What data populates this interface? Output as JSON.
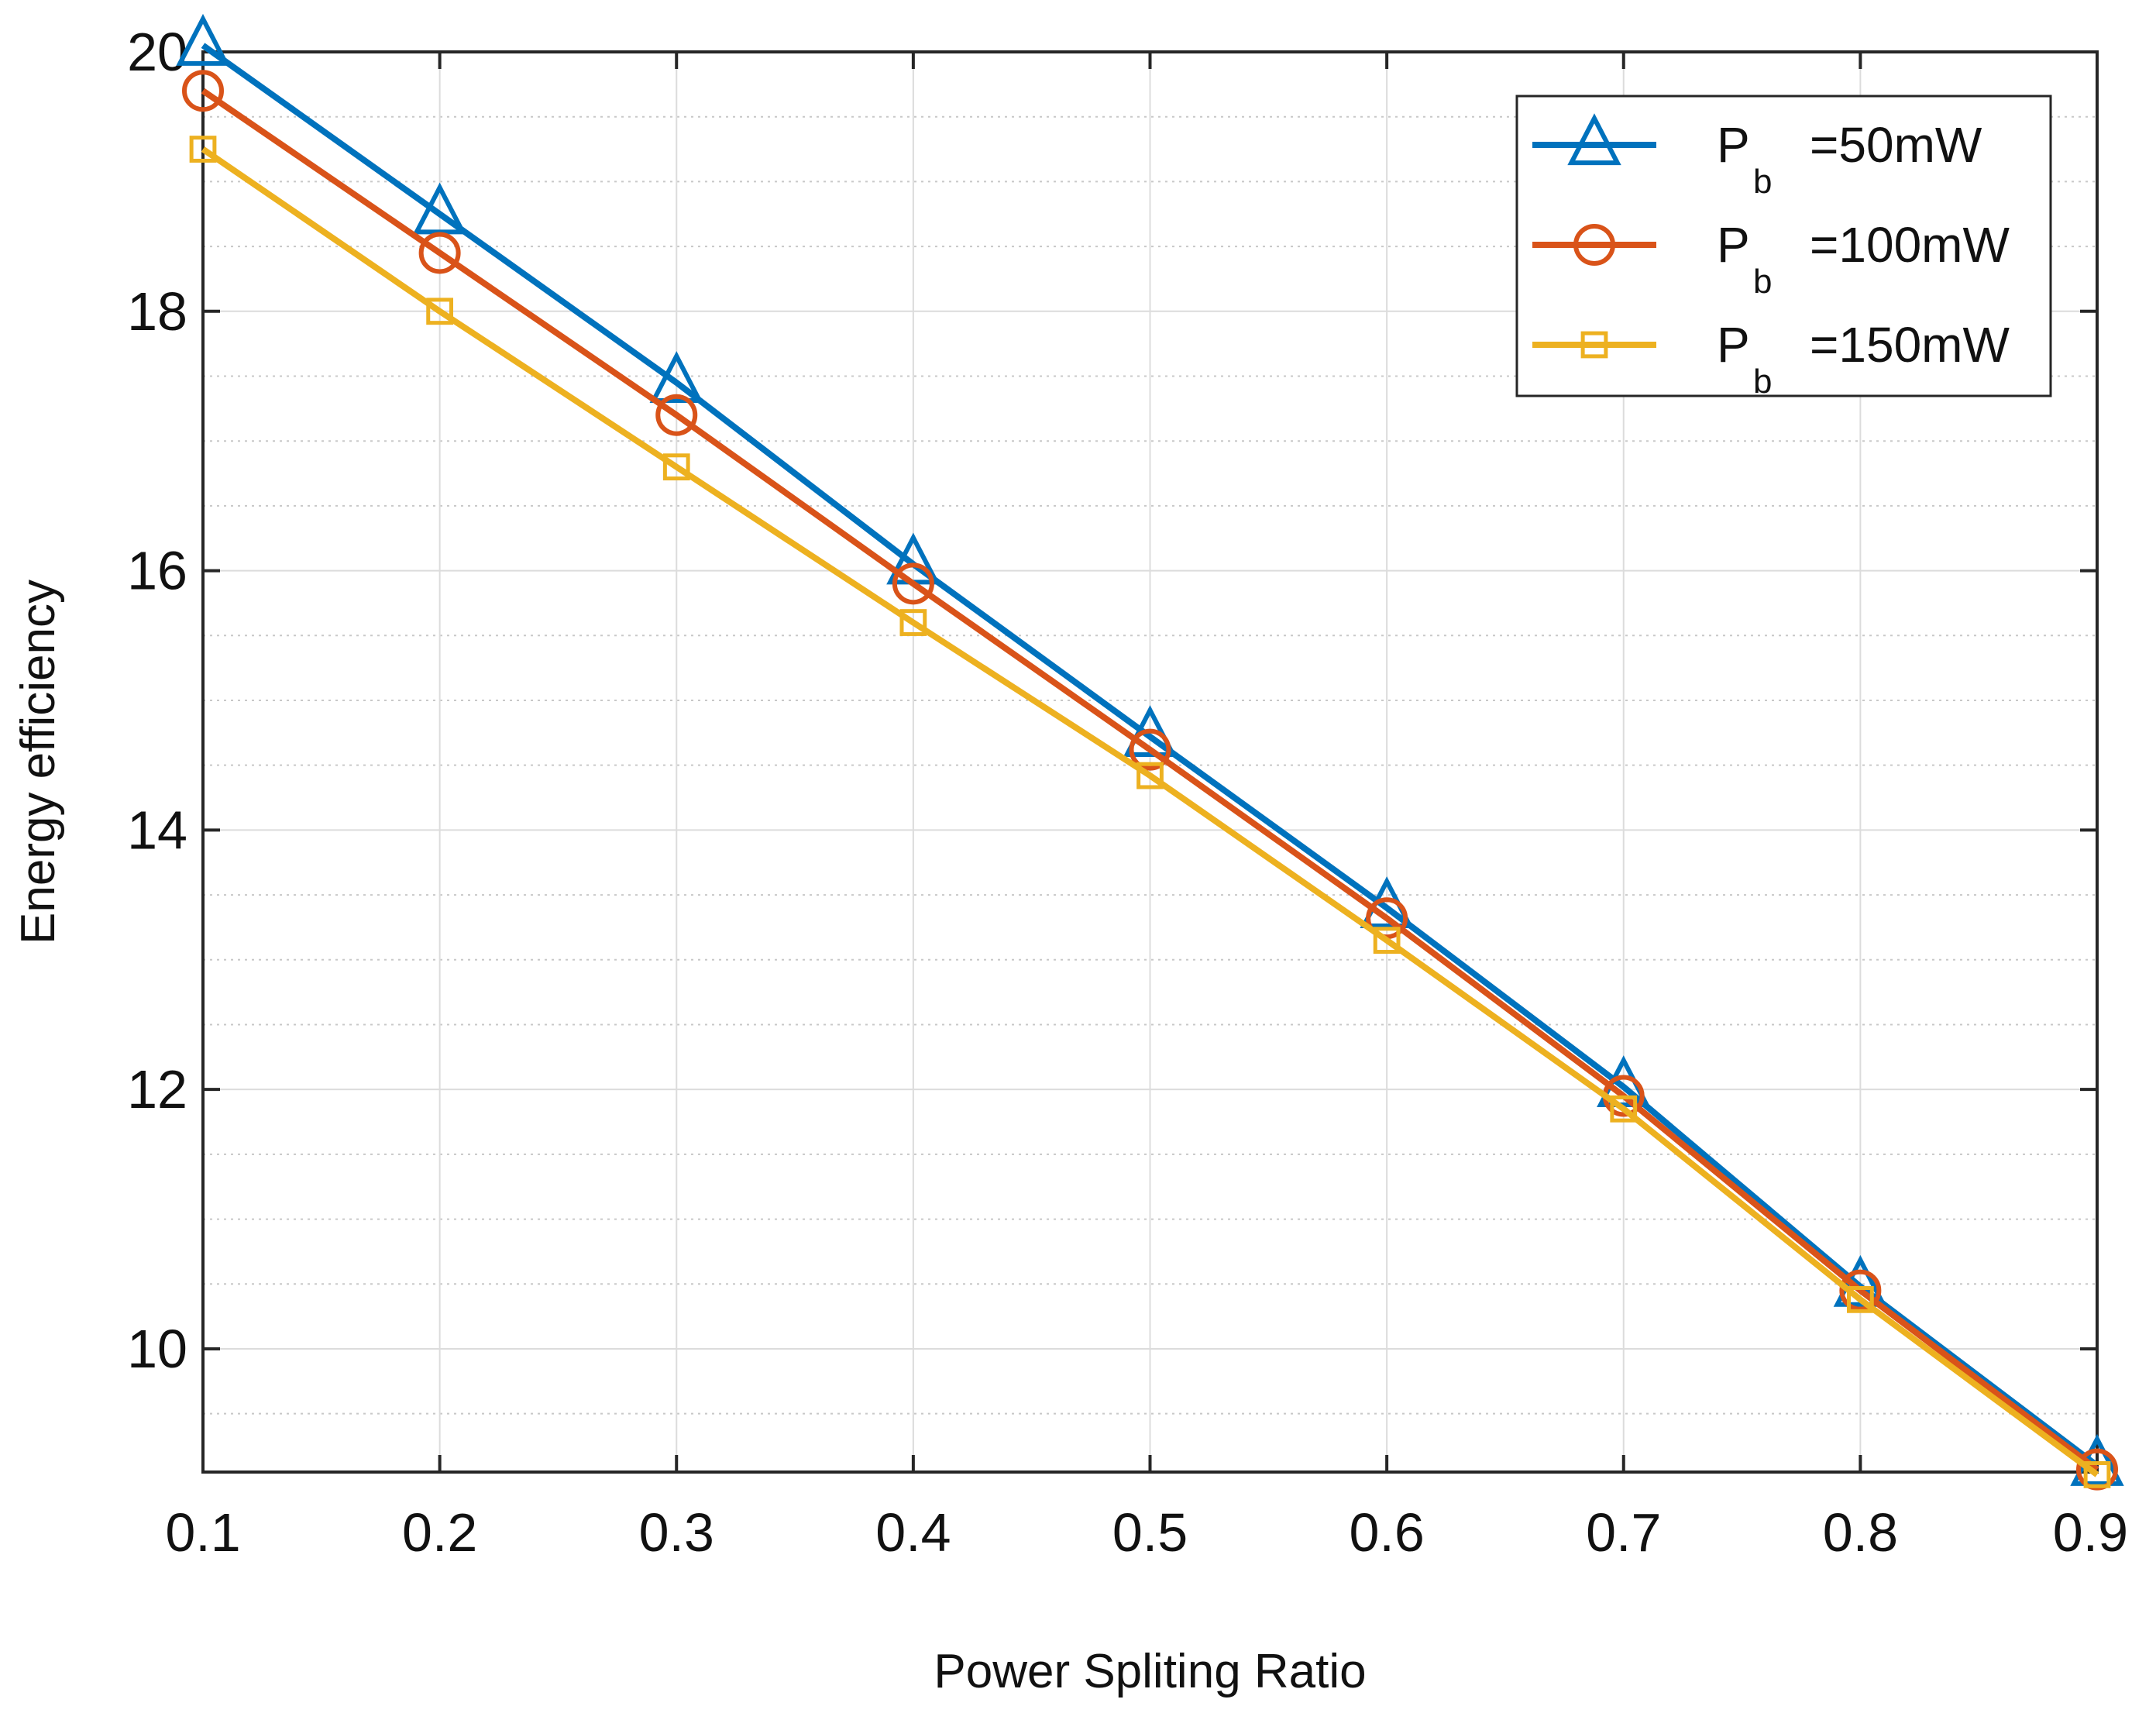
{
  "chart_data": {
    "type": "line",
    "title": "",
    "xlabel": "Power Spliting Ratio",
    "ylabel": "Energy efficiency",
    "x": [
      0.1,
      0.2,
      0.3,
      0.4,
      0.5,
      0.6,
      0.7,
      0.8,
      0.9
    ],
    "xlim": [
      0.1,
      0.9
    ],
    "ylim": [
      9.05,
      20.0
    ],
    "xticks": [
      "0.1",
      "0.2",
      "0.3",
      "0.4",
      "0.5",
      "0.6",
      "0.7",
      "0.8",
      "0.9"
    ],
    "yticks": [
      10,
      12,
      14,
      16,
      18,
      20
    ],
    "grid": true,
    "legend_position": "top-right",
    "series": [
      {
        "name": "=50mW",
        "legend_main": "P",
        "legend_sub": "b",
        "legend_value": "=50mW",
        "color": "#0072BD",
        "marker": "triangle",
        "values": [
          20.05,
          18.75,
          17.45,
          16.05,
          14.72,
          13.4,
          12.02,
          10.48,
          9.1
        ]
      },
      {
        "name": "=100mW",
        "legend_main": "P",
        "legend_sub": "b",
        "legend_value": "=100mW",
        "color": "#D95319",
        "marker": "circle",
        "values": [
          19.7,
          18.45,
          17.2,
          15.9,
          14.62,
          13.32,
          11.95,
          10.45,
          9.07
        ]
      },
      {
        "name": "=150mW",
        "legend_main": "P",
        "legend_sub": "b",
        "legend_value": "=150mW",
        "color": "#EDB120",
        "marker": "square",
        "values": [
          19.25,
          18.0,
          16.8,
          15.6,
          14.42,
          13.15,
          11.85,
          10.38,
          9.03
        ]
      }
    ]
  }
}
